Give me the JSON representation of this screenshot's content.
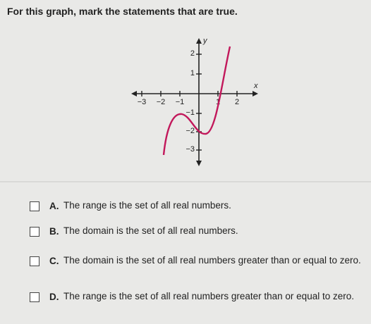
{
  "question": "For this graph, mark the statements that are true.",
  "graph": {
    "x_label": "x",
    "y_label": "y",
    "x_ticks": [
      "−3",
      "−2",
      "−1",
      "1",
      "2"
    ],
    "y_ticks": [
      "2",
      "1",
      "−1",
      "−2",
      "−3"
    ]
  },
  "options": [
    {
      "letter": "A.",
      "text": "The range is the set of all real numbers."
    },
    {
      "letter": "B.",
      "text": "The domain is the set of all real numbers."
    },
    {
      "letter": "C.",
      "text": "The domain is the set of all real numbers greater than or equal to zero."
    },
    {
      "letter": "D.",
      "text": "The range is the set of all real numbers greater than or equal to zero."
    }
  ]
}
